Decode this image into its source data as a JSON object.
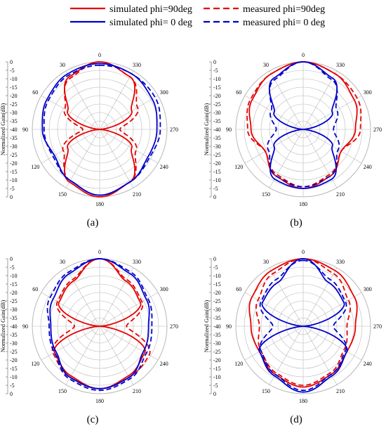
{
  "legend": {
    "sim90": "simulated phi=90deg",
    "meas90": "measured phi=90deg",
    "sim0": "simulated phi= 0 deg",
    "meas0": "measured phi= 0 deg"
  },
  "colors": {
    "phi90": "#e60000",
    "phi0": "#0000cc",
    "grid": "#b8b8b8",
    "axis": "#888888"
  },
  "chart_data": [
    {
      "type": "polar-line",
      "caption": "(a)",
      "ylabel": "Normalized Gain(dB)",
      "rlim": [
        -40,
        0
      ],
      "angle_ticks": [
        0,
        30,
        60,
        90,
        120,
        150,
        180,
        210,
        240,
        270,
        300,
        330
      ],
      "radial_ticks": [
        0,
        -5,
        -10,
        -15,
        -20,
        -25,
        -30,
        -35,
        -40
      ],
      "angles_deg": [
        0,
        30,
        60,
        90,
        120,
        150,
        180,
        210,
        240,
        270,
        300,
        330
      ],
      "series": [
        {
          "name": "simulated phi=90deg",
          "values": [
            0,
            -4,
            -18,
            -40,
            -18,
            -4,
            0,
            -4,
            -18,
            -40,
            -18,
            -4
          ]
        },
        {
          "name": "measured phi=90deg",
          "values": [
            0,
            -5,
            -16,
            -30,
            -15,
            -5,
            -1,
            -4,
            -15,
            -28,
            -14,
            -4
          ]
        },
        {
          "name": "simulated phi= 0 deg",
          "values": [
            -1,
            -2,
            -4,
            -6,
            -9,
            -5,
            -1,
            -4,
            -7,
            -6,
            -4,
            -2
          ]
        },
        {
          "name": "measured phi= 0 deg",
          "values": [
            -2,
            -3,
            -5,
            -7,
            -8,
            -5,
            -1,
            -4,
            -6,
            -4,
            -2,
            -2
          ]
        }
      ]
    },
    {
      "type": "polar-line",
      "caption": "(b)",
      "ylabel": "Normalized Gain(dB)",
      "rlim": [
        -40,
        0
      ],
      "angle_ticks": [
        0,
        30,
        60,
        90,
        120,
        150,
        180,
        210,
        240,
        270,
        300,
        330
      ],
      "radial_ticks": [
        0,
        -5,
        -10,
        -15,
        -20,
        -25,
        -30,
        -35,
        -40
      ],
      "angles_deg": [
        0,
        30,
        60,
        90,
        120,
        150,
        180,
        210,
        240,
        270,
        300,
        330
      ],
      "series": [
        {
          "name": "simulated phi=90deg",
          "values": [
            0,
            -2,
            -5,
            -9,
            -14,
            -8,
            -5,
            -8,
            -14,
            -9,
            -5,
            -2
          ]
        },
        {
          "name": "measured phi=90deg",
          "values": [
            0,
            -2,
            -4,
            -7,
            -14,
            -9,
            -6,
            -9,
            -14,
            -6,
            -3,
            -2
          ]
        },
        {
          "name": "simulated phi= 0 deg",
          "values": [
            0,
            -5,
            -20,
            -40,
            -20,
            -6,
            -5,
            -6,
            -20,
            -40,
            -20,
            -5
          ]
        },
        {
          "name": "measured phi= 0 deg",
          "values": [
            0,
            -6,
            -18,
            -24,
            -16,
            -8,
            -6,
            -8,
            -16,
            -22,
            -17,
            -6
          ]
        }
      ]
    },
    {
      "type": "polar-line",
      "caption": "(c)",
      "ylabel": "Normalized Gain(dB)",
      "rlim": [
        -40,
        0
      ],
      "angle_ticks": [
        0,
        30,
        60,
        90,
        120,
        150,
        180,
        210,
        240,
        270,
        300,
        330
      ],
      "radial_ticks": [
        0,
        -5,
        -10,
        -15,
        -20,
        -25,
        -30,
        -35,
        -40
      ],
      "angles_deg": [
        0,
        30,
        60,
        90,
        120,
        150,
        180,
        210,
        240,
        270,
        300,
        330
      ],
      "series": [
        {
          "name": "simulated phi=90deg",
          "values": [
            0,
            -9,
            -12,
            -40,
            -9,
            -6,
            -3,
            -6,
            -9,
            -40,
            -12,
            -9
          ]
        },
        {
          "name": "measured phi=90deg",
          "values": [
            0,
            -8,
            -11,
            -25,
            -8,
            -5,
            -3,
            -5,
            -6,
            -24,
            -11,
            -8
          ]
        },
        {
          "name": "simulated phi= 0 deg",
          "values": [
            0,
            -4,
            -8,
            -11,
            -10,
            -5,
            -3,
            -5,
            -10,
            -11,
            -8,
            -4
          ]
        },
        {
          "name": "measured phi= 0 deg",
          "values": [
            0,
            -3,
            -6,
            -10,
            -9,
            -4,
            -2,
            -4,
            -8,
            -9,
            -7,
            -3
          ]
        }
      ]
    },
    {
      "type": "polar-line",
      "caption": "(d)",
      "ylabel": "Normalized Gain(dB)",
      "rlim": [
        -40,
        0
      ],
      "angle_ticks": [
        0,
        30,
        60,
        90,
        120,
        150,
        180,
        210,
        240,
        270,
        300,
        330
      ],
      "radial_ticks": [
        0,
        -5,
        -10,
        -15,
        -20,
        -25,
        -30,
        -35,
        -40
      ],
      "angles_deg": [
        0,
        30,
        60,
        90,
        120,
        150,
        180,
        210,
        240,
        270,
        300,
        330
      ],
      "series": [
        {
          "name": "simulated phi=90deg",
          "values": [
            0,
            -2,
            -5,
            -9,
            -10,
            -7,
            -4,
            -7,
            -10,
            -9,
            -5,
            -2
          ]
        },
        {
          "name": "measured phi=90deg",
          "values": [
            0,
            -4,
            -9,
            -14,
            -11,
            -8,
            -5,
            -8,
            -12,
            -14,
            -9,
            -4
          ]
        },
        {
          "name": "simulated phi= 0 deg",
          "values": [
            0,
            -10,
            -12,
            -40,
            -10,
            -6,
            -1,
            -6,
            -10,
            -40,
            -12,
            -10
          ]
        },
        {
          "name": "measured phi= 0 deg",
          "values": [
            -1,
            -8,
            -11,
            -22,
            -11,
            -7,
            -2,
            -7,
            -11,
            -22,
            -11,
            -8
          ]
        }
      ]
    }
  ]
}
